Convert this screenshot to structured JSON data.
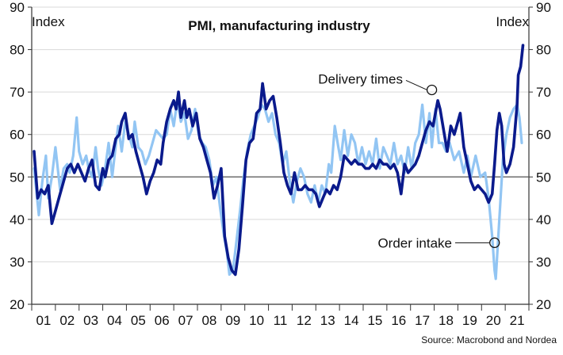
{
  "chart_data": {
    "type": "line",
    "title": "PMI, manufacturing industry",
    "ylabel_left": "Index",
    "ylabel_right": "Index",
    "ylim": [
      20,
      90
    ],
    "yticks": [
      20,
      30,
      40,
      50,
      60,
      70,
      80,
      90
    ],
    "xlim": [
      2000.5,
      2021.5
    ],
    "xticks": [
      "01",
      "02",
      "03",
      "04",
      "05",
      "06",
      "07",
      "08",
      "09",
      "10",
      "11",
      "12",
      "13",
      "14",
      "15",
      "16",
      "17",
      "18",
      "19",
      "20",
      "21"
    ],
    "reference_line": 50,
    "grid": true,
    "source": "Source: Macrobond and Nordea",
    "colors": {
      "order_intake": "#92c5f3",
      "delivery_times": "#0a1a8c",
      "reference": "#555555",
      "grid": "#d9d9d9"
    },
    "annotations": [
      {
        "text": "Delivery times",
        "series": "Delivery times",
        "x": 2017.4,
        "y": 70.5
      },
      {
        "text": "Order intake",
        "series": "Order intake",
        "x": 2020.05,
        "y": 34.5
      }
    ],
    "series": [
      {
        "name": "Order intake",
        "points": [
          [
            2000.6,
            52
          ],
          [
            2000.8,
            41
          ],
          [
            2000.95,
            49
          ],
          [
            2001.1,
            55
          ],
          [
            2001.2,
            45
          ],
          [
            2001.35,
            50
          ],
          [
            2001.5,
            57
          ],
          [
            2001.7,
            47
          ],
          [
            2001.85,
            52
          ],
          [
            2002.0,
            53
          ],
          [
            2002.1,
            51
          ],
          [
            2002.25,
            55
          ],
          [
            2002.4,
            64
          ],
          [
            2002.5,
            56
          ],
          [
            2002.65,
            53
          ],
          [
            2002.8,
            55
          ],
          [
            2002.9,
            52
          ],
          [
            2003.05,
            50
          ],
          [
            2003.2,
            57
          ],
          [
            2003.3,
            52
          ],
          [
            2003.45,
            48
          ],
          [
            2003.6,
            52
          ],
          [
            2003.75,
            58
          ],
          [
            2003.9,
            50
          ],
          [
            2004.0,
            55
          ],
          [
            2004.15,
            62
          ],
          [
            2004.3,
            56
          ],
          [
            2004.45,
            63
          ],
          [
            2004.6,
            60
          ],
          [
            2004.75,
            57
          ],
          [
            2004.85,
            63
          ],
          [
            2005.0,
            57
          ],
          [
            2005.15,
            56
          ],
          [
            2005.3,
            53
          ],
          [
            2005.45,
            55
          ],
          [
            2005.6,
            58
          ],
          [
            2005.75,
            61
          ],
          [
            2005.9,
            60
          ],
          [
            2006.05,
            59
          ],
          [
            2006.2,
            60
          ],
          [
            2006.35,
            66
          ],
          [
            2006.5,
            62
          ],
          [
            2006.65,
            68
          ],
          [
            2006.8,
            63
          ],
          [
            2006.95,
            65
          ],
          [
            2007.1,
            59
          ],
          [
            2007.25,
            61
          ],
          [
            2007.4,
            66
          ],
          [
            2007.55,
            60
          ],
          [
            2007.7,
            58
          ],
          [
            2007.85,
            57
          ],
          [
            2008.0,
            54
          ],
          [
            2008.15,
            48
          ],
          [
            2008.3,
            50
          ],
          [
            2008.45,
            43
          ],
          [
            2008.6,
            37
          ],
          [
            2008.75,
            32
          ],
          [
            2008.85,
            27
          ],
          [
            2009.0,
            28
          ],
          [
            2009.15,
            35
          ],
          [
            2009.3,
            42
          ],
          [
            2009.45,
            50
          ],
          [
            2009.6,
            56
          ],
          [
            2009.75,
            60
          ],
          [
            2009.9,
            62
          ],
          [
            2010.05,
            64
          ],
          [
            2010.2,
            67
          ],
          [
            2010.35,
            66
          ],
          [
            2010.5,
            63
          ],
          [
            2010.65,
            65
          ],
          [
            2010.8,
            60
          ],
          [
            2010.95,
            58
          ],
          [
            2011.1,
            53
          ],
          [
            2011.25,
            56
          ],
          [
            2011.4,
            49
          ],
          [
            2011.55,
            44
          ],
          [
            2011.7,
            49
          ],
          [
            2011.85,
            52
          ],
          [
            2012.0,
            50
          ],
          [
            2012.15,
            46
          ],
          [
            2012.3,
            44
          ],
          [
            2012.45,
            48
          ],
          [
            2012.6,
            44
          ],
          [
            2012.75,
            48
          ],
          [
            2012.9,
            46
          ],
          [
            2013.05,
            53
          ],
          [
            2013.15,
            51
          ],
          [
            2013.3,
            62
          ],
          [
            2013.45,
            57
          ],
          [
            2013.55,
            54
          ],
          [
            2013.7,
            61
          ],
          [
            2013.85,
            55
          ],
          [
            2014.0,
            60
          ],
          [
            2014.15,
            58
          ],
          [
            2014.3,
            53
          ],
          [
            2014.45,
            57
          ],
          [
            2014.6,
            53
          ],
          [
            2014.75,
            56
          ],
          [
            2014.9,
            53
          ],
          [
            2015.05,
            59
          ],
          [
            2015.2,
            52
          ],
          [
            2015.35,
            57
          ],
          [
            2015.5,
            55
          ],
          [
            2015.65,
            53
          ],
          [
            2015.8,
            58
          ],
          [
            2015.95,
            53
          ],
          [
            2016.1,
            55
          ],
          [
            2016.25,
            51
          ],
          [
            2016.4,
            57
          ],
          [
            2016.55,
            52
          ],
          [
            2016.7,
            58
          ],
          [
            2016.85,
            60
          ],
          [
            2017.0,
            67
          ],
          [
            2017.15,
            58
          ],
          [
            2017.3,
            65
          ],
          [
            2017.4,
            57
          ],
          [
            2017.55,
            66
          ],
          [
            2017.7,
            58
          ],
          [
            2017.85,
            58
          ],
          [
            2018.0,
            56
          ],
          [
            2018.15,
            58
          ],
          [
            2018.35,
            54
          ],
          [
            2018.55,
            56
          ],
          [
            2018.75,
            51
          ],
          [
            2018.9,
            55
          ],
          [
            2019.05,
            50
          ],
          [
            2019.25,
            55
          ],
          [
            2019.45,
            50
          ],
          [
            2019.65,
            51
          ],
          [
            2019.8,
            45
          ],
          [
            2019.95,
            36
          ],
          [
            2020.05,
            28
          ],
          [
            2020.1,
            26
          ],
          [
            2020.25,
            40
          ],
          [
            2020.4,
            54
          ],
          [
            2020.55,
            60
          ],
          [
            2020.7,
            64
          ],
          [
            2020.85,
            66
          ],
          [
            2021.0,
            67
          ],
          [
            2021.1,
            64
          ],
          [
            2021.2,
            58
          ]
        ]
      },
      {
        "name": "Delivery times",
        "points": [
          [
            2000.6,
            56
          ],
          [
            2000.75,
            45
          ],
          [
            2000.9,
            47
          ],
          [
            2001.05,
            46
          ],
          [
            2001.2,
            48
          ],
          [
            2001.35,
            39
          ],
          [
            2001.5,
            42
          ],
          [
            2001.65,
            45
          ],
          [
            2001.85,
            49
          ],
          [
            2002.0,
            52
          ],
          [
            2002.15,
            53
          ],
          [
            2002.3,
            51
          ],
          [
            2002.45,
            53
          ],
          [
            2002.6,
            51
          ],
          [
            2002.75,
            49
          ],
          [
            2002.9,
            52
          ],
          [
            2003.05,
            54
          ],
          [
            2003.2,
            48
          ],
          [
            2003.35,
            47
          ],
          [
            2003.5,
            52
          ],
          [
            2003.6,
            50
          ],
          [
            2003.75,
            54
          ],
          [
            2003.9,
            55
          ],
          [
            2004.05,
            59
          ],
          [
            2004.2,
            60
          ],
          [
            2004.3,
            63
          ],
          [
            2004.45,
            65
          ],
          [
            2004.6,
            59
          ],
          [
            2004.75,
            60
          ],
          [
            2004.9,
            56
          ],
          [
            2005.05,
            53
          ],
          [
            2005.2,
            50
          ],
          [
            2005.35,
            46
          ],
          [
            2005.5,
            49
          ],
          [
            2005.65,
            51
          ],
          [
            2005.8,
            54
          ],
          [
            2005.95,
            53
          ],
          [
            2006.05,
            58
          ],
          [
            2006.2,
            63
          ],
          [
            2006.35,
            66
          ],
          [
            2006.5,
            68
          ],
          [
            2006.6,
            66
          ],
          [
            2006.7,
            70
          ],
          [
            2006.8,
            64
          ],
          [
            2006.95,
            68
          ],
          [
            2007.05,
            64
          ],
          [
            2007.15,
            66
          ],
          [
            2007.3,
            62
          ],
          [
            2007.45,
            65
          ],
          [
            2007.6,
            59
          ],
          [
            2007.75,
            57
          ],
          [
            2007.9,
            54
          ],
          [
            2008.05,
            51
          ],
          [
            2008.2,
            45
          ],
          [
            2008.35,
            48
          ],
          [
            2008.5,
            52
          ],
          [
            2008.65,
            36
          ],
          [
            2008.8,
            31
          ],
          [
            2008.95,
            28
          ],
          [
            2009.1,
            27
          ],
          [
            2009.25,
            33
          ],
          [
            2009.4,
            43
          ],
          [
            2009.55,
            54
          ],
          [
            2009.7,
            58
          ],
          [
            2009.85,
            59
          ],
          [
            2010.0,
            65
          ],
          [
            2010.15,
            66
          ],
          [
            2010.25,
            72
          ],
          [
            2010.4,
            66
          ],
          [
            2010.55,
            68
          ],
          [
            2010.7,
            69
          ],
          [
            2010.85,
            64
          ],
          [
            2011.0,
            58
          ],
          [
            2011.15,
            51
          ],
          [
            2011.3,
            48
          ],
          [
            2011.45,
            46
          ],
          [
            2011.6,
            51
          ],
          [
            2011.75,
            47
          ],
          [
            2011.9,
            47
          ],
          [
            2012.05,
            48
          ],
          [
            2012.2,
            47
          ],
          [
            2012.35,
            47
          ],
          [
            2012.5,
            46
          ],
          [
            2012.65,
            43
          ],
          [
            2012.8,
            45
          ],
          [
            2012.95,
            47
          ],
          [
            2013.1,
            46
          ],
          [
            2013.25,
            48
          ],
          [
            2013.4,
            47
          ],
          [
            2013.55,
            50
          ],
          [
            2013.7,
            55
          ],
          [
            2013.85,
            54
          ],
          [
            2014.0,
            53
          ],
          [
            2014.15,
            54
          ],
          [
            2014.3,
            53
          ],
          [
            2014.45,
            53
          ],
          [
            2014.6,
            52
          ],
          [
            2014.75,
            52
          ],
          [
            2014.9,
            53
          ],
          [
            2015.05,
            52
          ],
          [
            2015.2,
            54
          ],
          [
            2015.35,
            53
          ],
          [
            2015.5,
            53
          ],
          [
            2015.65,
            52
          ],
          [
            2015.8,
            53
          ],
          [
            2015.95,
            51
          ],
          [
            2016.1,
            46
          ],
          [
            2016.25,
            53
          ],
          [
            2016.4,
            51
          ],
          [
            2016.55,
            52
          ],
          [
            2016.7,
            53
          ],
          [
            2016.85,
            55
          ],
          [
            2017.0,
            58
          ],
          [
            2017.15,
            61
          ],
          [
            2017.3,
            63
          ],
          [
            2017.45,
            62
          ],
          [
            2017.55,
            65
          ],
          [
            2017.65,
            68
          ],
          [
            2017.75,
            66
          ],
          [
            2017.9,
            61
          ],
          [
            2018.05,
            56
          ],
          [
            2018.2,
            62
          ],
          [
            2018.35,
            60
          ],
          [
            2018.5,
            63
          ],
          [
            2018.6,
            65
          ],
          [
            2018.75,
            57
          ],
          [
            2018.9,
            53
          ],
          [
            2019.05,
            49
          ],
          [
            2019.2,
            47
          ],
          [
            2019.35,
            48
          ],
          [
            2019.5,
            47
          ],
          [
            2019.65,
            46
          ],
          [
            2019.8,
            44
          ],
          [
            2019.95,
            46
          ],
          [
            2020.05,
            53
          ],
          [
            2020.15,
            61
          ],
          [
            2020.25,
            65
          ],
          [
            2020.35,
            62
          ],
          [
            2020.45,
            53
          ],
          [
            2020.55,
            51
          ],
          [
            2020.7,
            53
          ],
          [
            2020.85,
            57
          ],
          [
            2021.0,
            67
          ],
          [
            2021.05,
            74
          ],
          [
            2021.15,
            76
          ],
          [
            2021.25,
            81
          ]
        ]
      }
    ]
  }
}
